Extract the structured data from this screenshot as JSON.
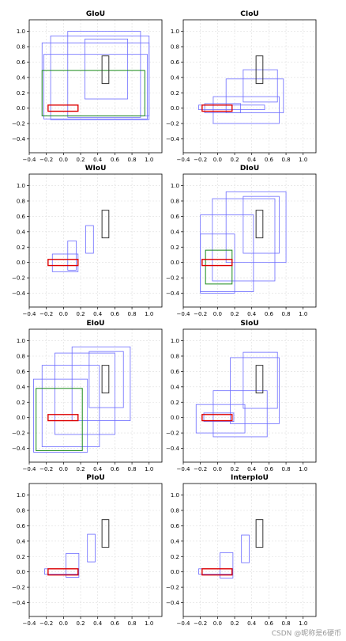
{
  "watermark": "CSDN @昵称是6硬币",
  "colors": {
    "predicted": "#6b6bff",
    "ground_truth": "#dd0000",
    "target": "#333333",
    "final": "#1a8a1a",
    "grid": "#dddddd",
    "axes": "#000000"
  },
  "chart_data": [
    {
      "type": "boxes",
      "title": "GIoU",
      "xlim": [
        -0.4,
        1.15
      ],
      "ylim": [
        -0.58,
        1.15
      ],
      "xticks": [
        -0.4,
        -0.2,
        0.0,
        0.2,
        0.4,
        0.6,
        0.8,
        1.0
      ],
      "yticks": [
        -0.4,
        -0.2,
        0.0,
        0.2,
        0.4,
        0.6,
        0.8,
        1.0
      ],
      "grid": true,
      "target_box": [
        0.45,
        0.32,
        0.53,
        0.68
      ],
      "ground_truth_box": [
        -0.18,
        -0.04,
        0.17,
        0.04
      ],
      "predicted_boxes": [
        [
          -0.15,
          -0.15,
          1.0,
          0.94
        ],
        [
          0.05,
          -0.12,
          0.9,
          1.0
        ],
        [
          -0.25,
          -0.1,
          1.0,
          0.85
        ],
        [
          -0.23,
          -0.14,
          0.98,
          0.7
        ],
        [
          0.25,
          0.12,
          0.75,
          0.9
        ]
      ],
      "final_box": [
        -0.25,
        -0.1,
        0.95,
        0.49
      ]
    },
    {
      "type": "boxes",
      "title": "CIoU",
      "xlim": [
        -0.4,
        1.15
      ],
      "ylim": [
        -0.58,
        1.15
      ],
      "xticks": [
        -0.4,
        -0.2,
        0.0,
        0.2,
        0.4,
        0.6,
        0.8,
        1.0
      ],
      "yticks": [
        -0.4,
        -0.2,
        0.0,
        0.2,
        0.4,
        0.6,
        0.8,
        1.0
      ],
      "grid": true,
      "target_box": [
        0.45,
        0.32,
        0.53,
        0.68
      ],
      "ground_truth_box": [
        -0.18,
        -0.04,
        0.17,
        0.04
      ],
      "predicted_boxes": [
        [
          -0.22,
          -0.02,
          0.55,
          0.04
        ],
        [
          -0.05,
          -0.2,
          0.72,
          0.15
        ],
        [
          0.1,
          -0.06,
          0.77,
          0.38
        ],
        [
          0.3,
          0.08,
          0.7,
          0.5
        ],
        [
          -0.15,
          -0.06,
          0.27,
          0.06
        ]
      ],
      "final_box": null
    },
    {
      "type": "boxes",
      "title": "WIoU",
      "xlim": [
        -0.4,
        1.15
      ],
      "ylim": [
        -0.58,
        1.15
      ],
      "xticks": [
        -0.4,
        -0.2,
        0.0,
        0.2,
        0.4,
        0.6,
        0.8,
        1.0
      ],
      "yticks": [
        -0.4,
        -0.2,
        0.0,
        0.2,
        0.4,
        0.6,
        0.8,
        1.0
      ],
      "grid": true,
      "target_box": [
        0.45,
        0.32,
        0.53,
        0.68
      ],
      "ground_truth_box": [
        -0.18,
        -0.04,
        0.17,
        0.04
      ],
      "predicted_boxes": [
        [
          -0.13,
          -0.12,
          0.17,
          0.11
        ],
        [
          0.05,
          -0.1,
          0.15,
          0.28
        ],
        [
          0.26,
          0.12,
          0.35,
          0.48
        ]
      ],
      "final_box": null
    },
    {
      "type": "boxes",
      "title": "DIoU",
      "xlim": [
        -0.4,
        1.15
      ],
      "ylim": [
        -0.58,
        1.15
      ],
      "xticks": [
        -0.4,
        -0.2,
        0.0,
        0.2,
        0.4,
        0.6,
        0.8,
        1.0
      ],
      "yticks": [
        -0.4,
        -0.2,
        0.0,
        0.2,
        0.4,
        0.6,
        0.8,
        1.0
      ],
      "grid": true,
      "target_box": [
        0.45,
        0.32,
        0.53,
        0.68
      ],
      "ground_truth_box": [
        -0.18,
        -0.04,
        0.17,
        0.04
      ],
      "predicted_boxes": [
        [
          -0.2,
          -0.38,
          0.42,
          0.62
        ],
        [
          -0.06,
          -0.24,
          0.67,
          0.83
        ],
        [
          0.1,
          0.0,
          0.8,
          0.92
        ],
        [
          0.3,
          0.12,
          0.72,
          0.86
        ],
        [
          -0.2,
          -0.4,
          0.2,
          0.37
        ]
      ],
      "final_box": [
        -0.14,
        -0.28,
        0.17,
        0.16
      ]
    },
    {
      "type": "boxes",
      "title": "EIoU",
      "xlim": [
        -0.4,
        1.15
      ],
      "ylim": [
        -0.58,
        1.15
      ],
      "xticks": [
        -0.4,
        -0.2,
        0.0,
        0.2,
        0.4,
        0.6,
        0.8,
        1.0
      ],
      "yticks": [
        -0.4,
        -0.2,
        0.0,
        0.2,
        0.4,
        0.6,
        0.8,
        1.0
      ],
      "grid": true,
      "target_box": [
        0.45,
        0.32,
        0.53,
        0.68
      ],
      "ground_truth_box": [
        -0.18,
        -0.04,
        0.17,
        0.04
      ],
      "predicted_boxes": [
        [
          -0.35,
          -0.45,
          0.28,
          0.5
        ],
        [
          -0.25,
          -0.38,
          0.42,
          0.68
        ],
        [
          -0.1,
          -0.22,
          0.6,
          0.84
        ],
        [
          0.1,
          -0.04,
          0.78,
          0.92
        ],
        [
          0.3,
          0.13,
          0.7,
          0.86
        ]
      ],
      "final_box": [
        -0.32,
        -0.43,
        0.22,
        0.38
      ]
    },
    {
      "type": "boxes",
      "title": "SIoU",
      "xlim": [
        -0.4,
        1.15
      ],
      "ylim": [
        -0.58,
        1.15
      ],
      "xticks": [
        -0.4,
        -0.2,
        0.0,
        0.2,
        0.4,
        0.6,
        0.8,
        1.0
      ],
      "yticks": [
        -0.4,
        -0.2,
        0.0,
        0.2,
        0.4,
        0.6,
        0.8,
        1.0
      ],
      "grid": true,
      "target_box": [
        0.45,
        0.32,
        0.53,
        0.68
      ],
      "ground_truth_box": [
        -0.18,
        -0.04,
        0.17,
        0.04
      ],
      "predicted_boxes": [
        [
          -0.25,
          -0.2,
          0.32,
          0.17
        ],
        [
          -0.05,
          -0.25,
          0.58,
          0.35
        ],
        [
          0.15,
          -0.08,
          0.72,
          0.78
        ],
        [
          0.3,
          0.12,
          0.7,
          0.85
        ],
        [
          -0.16,
          -0.05,
          0.19,
          0.06
        ]
      ],
      "final_box": null
    },
    {
      "type": "boxes",
      "title": "PIoU",
      "xlim": [
        -0.4,
        1.15
      ],
      "ylim": [
        -0.58,
        1.15
      ],
      "xticks": [
        -0.4,
        -0.2,
        0.0,
        0.2,
        0.4,
        0.6,
        0.8,
        1.0
      ],
      "yticks": [
        -0.4,
        -0.2,
        0.0,
        0.2,
        0.4,
        0.6,
        0.8,
        1.0
      ],
      "grid": true,
      "target_box": [
        0.45,
        0.32,
        0.53,
        0.68
      ],
      "ground_truth_box": [
        -0.18,
        -0.04,
        0.17,
        0.04
      ],
      "predicted_boxes": [
        [
          -0.22,
          -0.03,
          0.17,
          0.04
        ],
        [
          0.03,
          -0.07,
          0.18,
          0.24
        ],
        [
          0.28,
          0.13,
          0.37,
          0.49
        ]
      ],
      "final_box": null
    },
    {
      "type": "boxes",
      "title": "InterpIoU",
      "xlim": [
        -0.4,
        1.15
      ],
      "ylim": [
        -0.58,
        1.15
      ],
      "xticks": [
        -0.4,
        -0.2,
        0.0,
        0.2,
        0.4,
        0.6,
        0.8,
        1.0
      ],
      "yticks": [
        -0.4,
        -0.2,
        0.0,
        0.2,
        0.4,
        0.6,
        0.8,
        1.0
      ],
      "grid": true,
      "target_box": [
        0.45,
        0.32,
        0.53,
        0.68
      ],
      "ground_truth_box": [
        -0.18,
        -0.04,
        0.17,
        0.04
      ],
      "predicted_boxes": [
        [
          -0.22,
          -0.03,
          0.17,
          0.04
        ],
        [
          0.03,
          -0.08,
          0.18,
          0.25
        ],
        [
          0.28,
          0.12,
          0.37,
          0.48
        ]
      ],
      "final_box": null
    }
  ]
}
